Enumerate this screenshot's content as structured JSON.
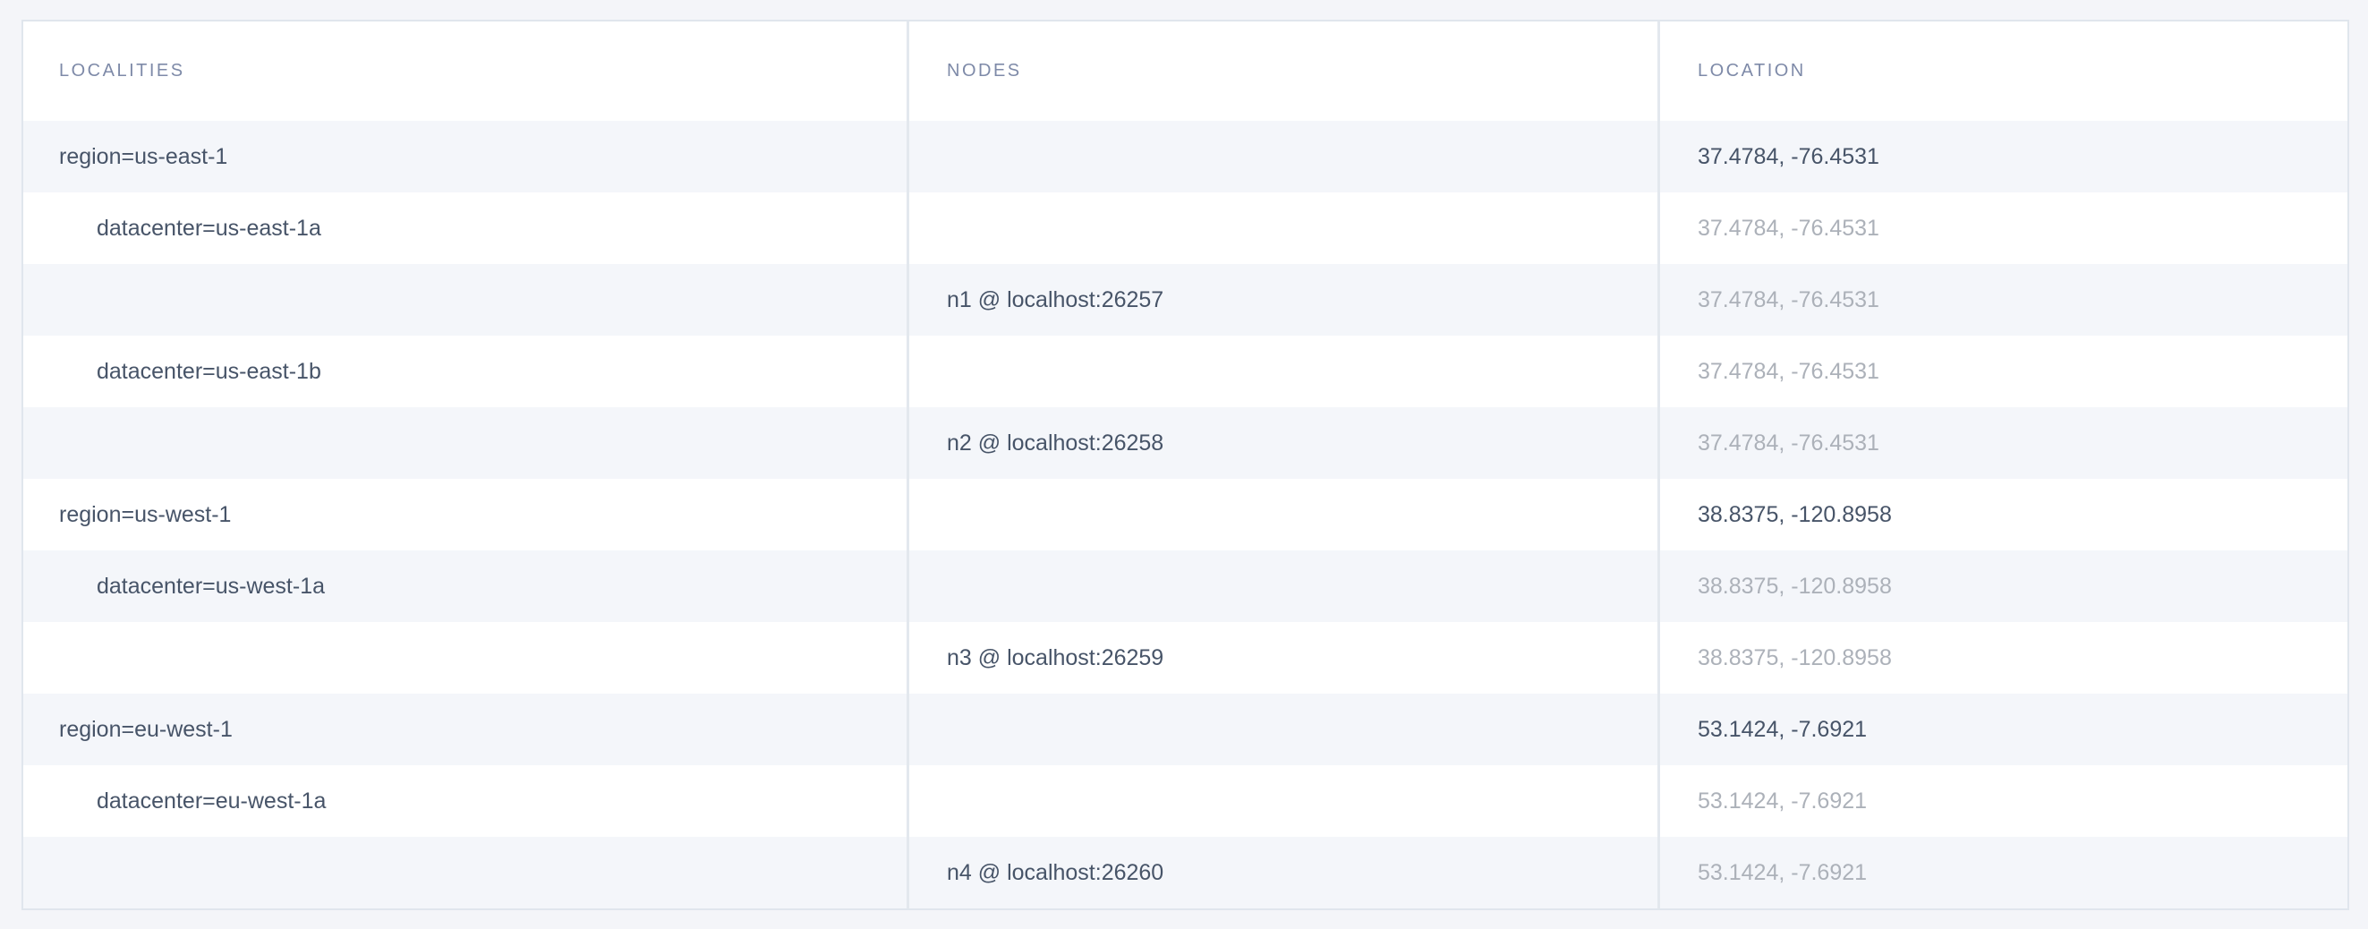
{
  "table": {
    "columns": [
      {
        "id": "localities",
        "label": "LOCALITIES"
      },
      {
        "id": "nodes",
        "label": "NODES"
      },
      {
        "id": "location",
        "label": "LOCATION"
      }
    ],
    "rows": [
      {
        "type": "region",
        "locality": "region=us-east-1",
        "node": "",
        "location": "37.4784, -76.4531",
        "location_emphasis": "dark"
      },
      {
        "type": "datacenter",
        "locality": "datacenter=us-east-1a",
        "node": "",
        "location": "37.4784, -76.4531",
        "location_emphasis": "muted"
      },
      {
        "type": "node",
        "locality": "",
        "node": "n1 @ localhost:26257",
        "location": "37.4784, -76.4531",
        "location_emphasis": "muted"
      },
      {
        "type": "datacenter",
        "locality": "datacenter=us-east-1b",
        "node": "",
        "location": "37.4784, -76.4531",
        "location_emphasis": "muted"
      },
      {
        "type": "node",
        "locality": "",
        "node": "n2 @ localhost:26258",
        "location": "37.4784, -76.4531",
        "location_emphasis": "muted"
      },
      {
        "type": "region",
        "locality": "region=us-west-1",
        "node": "",
        "location": "38.8375, -120.8958",
        "location_emphasis": "dark"
      },
      {
        "type": "datacenter",
        "locality": "datacenter=us-west-1a",
        "node": "",
        "location": "38.8375, -120.8958",
        "location_emphasis": "muted"
      },
      {
        "type": "node",
        "locality": "",
        "node": "n3 @ localhost:26259",
        "location": "38.8375, -120.8958",
        "location_emphasis": "muted"
      },
      {
        "type": "region",
        "locality": "region=eu-west-1",
        "node": "",
        "location": "53.1424, -7.6921",
        "location_emphasis": "dark"
      },
      {
        "type": "datacenter",
        "locality": "datacenter=eu-west-1a",
        "node": "",
        "location": "53.1424, -7.6921",
        "location_emphasis": "muted"
      },
      {
        "type": "node",
        "locality": "",
        "node": "n4 @ localhost:26260",
        "location": "53.1424, -7.6921",
        "location_emphasis": "muted"
      }
    ]
  },
  "colors": {
    "page_bg": "#f4f5f9",
    "row_stripe": "#f4f6fa",
    "table_bg": "#ffffff",
    "border": "#e0e6ed",
    "divider": "#e3e8ee",
    "header_text": "#7e8aa8",
    "text_dark": "#475468",
    "text_muted": "#acb1b9"
  }
}
